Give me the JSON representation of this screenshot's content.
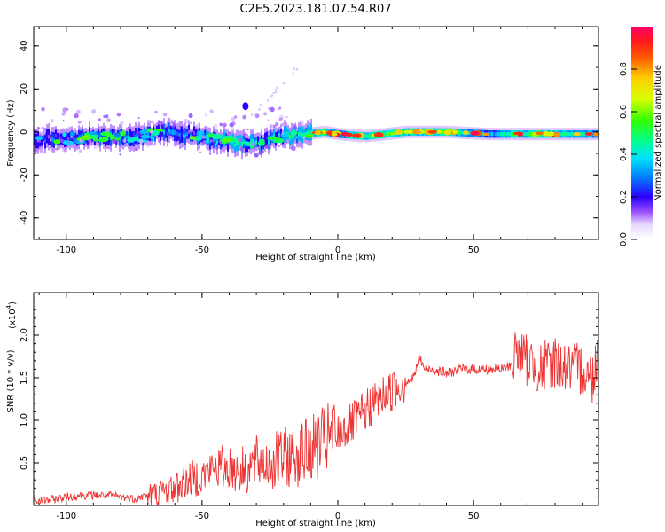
{
  "title": "C2E5.2023.181.07.54.R07",
  "colors": {
    "snr_line": "#ee3333",
    "colormap": [
      "#ffffff",
      "#e8d8ff",
      "#9a4dff",
      "#4400ff",
      "#1a33ff",
      "#00c8ff",
      "#00ffb0",
      "#4dff00",
      "#e8ff00",
      "#ff9900",
      "#ff2200",
      "#ff0055"
    ]
  },
  "chart_data": [
    {
      "type": "heatmap",
      "xlabel": "Height of straight line (km)",
      "ylabel": "Frequency (Hz)",
      "xlim": [
        -112,
        96
      ],
      "ylim": [
        -50,
        49
      ],
      "xticks": [
        -100,
        -50,
        0,
        50
      ],
      "xtick_labels": [
        "-100",
        "-50",
        "0",
        "50"
      ],
      "yticks": [
        -40,
        -20,
        0,
        20,
        40
      ],
      "ytick_labels": [
        "-40",
        "-20",
        "0",
        "20",
        "40"
      ],
      "ridge": [
        {
          "x": -112,
          "f": -3,
          "amp": 0.25
        },
        {
          "x": -100,
          "f": -3,
          "amp": 0.3
        },
        {
          "x": -85,
          "f": -2,
          "amp": 0.3
        },
        {
          "x": -75,
          "f": -3,
          "amp": 0.35
        },
        {
          "x": -65,
          "f": 0,
          "amp": 0.35
        },
        {
          "x": -55,
          "f": -1,
          "amp": 0.3
        },
        {
          "x": -45,
          "f": -4,
          "amp": 0.35
        },
        {
          "x": -38,
          "f": -5,
          "amp": 0.6
        },
        {
          "x": -30,
          "f": -5,
          "amp": 0.4
        },
        {
          "x": -20,
          "f": -2,
          "amp": 0.4
        },
        {
          "x": -12,
          "f": -1,
          "amp": 0.8
        },
        {
          "x": -5,
          "f": 0,
          "amp": 0.95
        },
        {
          "x": 0,
          "f": -1,
          "amp": 0.6
        },
        {
          "x": 10,
          "f": -2,
          "amp": 0.9
        },
        {
          "x": 25,
          "f": 0,
          "amp": 0.8
        },
        {
          "x": 40,
          "f": 0,
          "amp": 0.9
        },
        {
          "x": 55,
          "f": -1,
          "amp": 0.5
        },
        {
          "x": 65,
          "f": -1,
          "amp": 0.8
        },
        {
          "x": 80,
          "f": -1,
          "amp": 0.85
        },
        {
          "x": 96,
          "f": -1,
          "amp": 0.6
        }
      ],
      "colorbar": {
        "label": "Normalized spectral amplitude",
        "range": [
          0,
          1
        ],
        "ticks": [
          0,
          0.2,
          0.4,
          0.6,
          0.8
        ],
        "tick_labels": [
          "0.0",
          "0.2",
          "0.4",
          "0.6",
          "0.8"
        ]
      }
    },
    {
      "type": "line",
      "xlabel": "Height of straight line (km)",
      "ylabel": "SNR (10 * v/v)",
      "y_multiplier": "(x10",
      "y_multiplier_exp": "4",
      "xlim": [
        -112,
        96
      ],
      "ylim": [
        0,
        2.5
      ],
      "xticks": [
        -100,
        -50,
        0,
        50
      ],
      "xtick_labels": [
        "-100",
        "-50",
        "0",
        "50"
      ],
      "yticks": [
        0.5,
        1.0,
        1.5,
        2.0
      ],
      "ytick_labels": [
        "0.5",
        "1.0",
        "1.5",
        "2.0"
      ],
      "series": [
        {
          "x": [
            -112,
            -105,
            -100,
            -95,
            -90,
            -85,
            -80,
            -75,
            -70,
            -65,
            -60,
            -55,
            -50,
            -45,
            -40,
            -35,
            -30,
            -25,
            -20,
            -15,
            -10,
            -5,
            0,
            5,
            10,
            15,
            20,
            25,
            28,
            30,
            32,
            35,
            40,
            45,
            50,
            55,
            60,
            64,
            65,
            70,
            75,
            80,
            85,
            90,
            94,
            96
          ],
          "y": [
            0.05,
            0.07,
            0.1,
            0.12,
            0.12,
            0.12,
            0.1,
            0.08,
            0.12,
            0.15,
            0.2,
            0.3,
            0.35,
            0.45,
            0.45,
            0.4,
            0.5,
            0.5,
            0.55,
            0.6,
            0.65,
            0.75,
            0.85,
            0.95,
            1.1,
            1.25,
            1.35,
            1.45,
            1.5,
            1.75,
            1.6,
            1.6,
            1.55,
            1.6,
            1.6,
            1.6,
            1.6,
            1.65,
            1.8,
            1.7,
            1.6,
            1.7,
            1.6,
            1.6,
            1.5,
            1.9
          ]
        }
      ]
    }
  ]
}
